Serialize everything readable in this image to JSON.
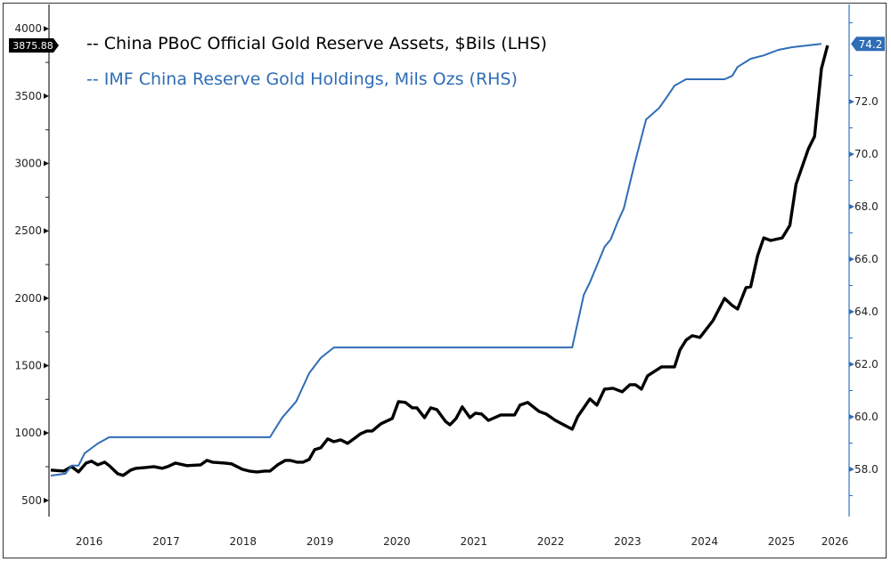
{
  "chart_data": {
    "type": "line",
    "title": "",
    "xlabel": "",
    "ylabel_left": "",
    "ylabel_right": "",
    "xlim": [
      2016.0,
      2026.38
    ],
    "ylim_left": [
      380,
      4180
    ],
    "ylim_right": [
      56.2,
      75.7
    ],
    "x_ticks": [
      "2016",
      "2017",
      "2018",
      "2019",
      "2020",
      "2021",
      "2022",
      "2023",
      "2024",
      "2025",
      "2026"
    ],
    "y_ticks_left": [
      500,
      1000,
      1500,
      2000,
      2500,
      3000,
      3500,
      4000
    ],
    "y_ticks_right": [
      "58.0",
      "60.0",
      "62.0",
      "64.0",
      "66.0",
      "68.0",
      "70.0",
      "72.0"
    ],
    "grid": false,
    "legend_placement": "top-left",
    "colors": {
      "left_series": "#000000",
      "right_series": "#2f6db5"
    },
    "series": [
      {
        "name": "-- China PBoC Official Gold Reserve Assets, $Bils (LHS)",
        "axis": "left",
        "last_value_label": "3875.88",
        "x": [
          2016.0,
          2016.17,
          2016.27,
          2016.36,
          2016.46,
          2016.53,
          2016.61,
          2016.7,
          2016.76,
          2016.87,
          2016.94,
          2017.04,
          2017.11,
          2017.23,
          2017.34,
          2017.45,
          2017.52,
          2017.62,
          2017.77,
          2017.95,
          2018.03,
          2018.1,
          2018.26,
          2018.35,
          2018.49,
          2018.58,
          2018.68,
          2018.78,
          2018.85,
          2018.95,
          2019.05,
          2019.11,
          2019.2,
          2019.28,
          2019.36,
          2019.43,
          2019.51,
          2019.6,
          2019.68,
          2019.77,
          2019.86,
          2019.94,
          2020.03,
          2020.11,
          2020.18,
          2020.29,
          2020.44,
          2020.52,
          2020.61,
          2020.7,
          2020.76,
          2020.86,
          2020.94,
          2021.02,
          2021.13,
          2021.19,
          2021.27,
          2021.35,
          2021.45,
          2021.52,
          2021.6,
          2021.69,
          2021.85,
          2022.03,
          2022.1,
          2022.2,
          2022.35,
          2022.44,
          2022.56,
          2022.78,
          2022.85,
          2023.01,
          2023.1,
          2023.2,
          2023.31,
          2023.43,
          2023.53,
          2023.6,
          2023.68,
          2023.76,
          2023.94,
          2024.11,
          2024.18,
          2024.26,
          2024.34,
          2024.44,
          2024.61,
          2024.76,
          2024.86,
          2024.93,
          2025.04,
          2025.1,
          2025.19,
          2025.27,
          2025.36,
          2025.51,
          2025.61,
          2025.69,
          2025.85,
          2025.93,
          2026.02,
          2026.1
        ],
        "values": [
          725,
          718,
          751,
          711,
          777,
          791,
          764,
          784,
          758,
          698,
          685,
          725,
          738,
          744,
          751,
          738,
          751,
          777,
          758,
          764,
          797,
          784,
          777,
          771,
          731,
          718,
          711,
          718,
          718,
          764,
          797,
          797,
          784,
          784,
          804,
          876,
          890,
          956,
          936,
          949,
          923,
          956,
          995,
          1015,
          1015,
          1068,
          1108,
          1233,
          1227,
          1187,
          1187,
          1114,
          1187,
          1174,
          1088,
          1061,
          1108,
          1194,
          1114,
          1147,
          1141,
          1094,
          1134,
          1134,
          1207,
          1227,
          1160,
          1141,
          1094,
          1028,
          1121,
          1253,
          1207,
          1326,
          1332,
          1306,
          1359,
          1359,
          1326,
          1425,
          1491,
          1491,
          1616,
          1689,
          1722,
          1709,
          1834,
          1999,
          1946,
          1920,
          2079,
          2085,
          2316,
          2448,
          2429,
          2448,
          2541,
          2845,
          3109,
          3201,
          3703,
          3875.88
        ]
      },
      {
        "name": "-- IMF China Reserve Gold Holdings, Mils Ozs  (RHS)",
        "axis": "right",
        "last_value_label": "74.2",
        "x": [
          2016.0,
          2016.19,
          2016.27,
          2016.36,
          2016.44,
          2016.61,
          2016.76,
          2018.85,
          2019.01,
          2019.19,
          2019.36,
          2019.51,
          2019.68,
          2022.78,
          2022.93,
          2023.01,
          2023.13,
          2023.2,
          2023.28,
          2023.37,
          2023.45,
          2023.59,
          2023.74,
          2023.91,
          2024.01,
          2024.11,
          2024.26,
          2024.76,
          2024.86,
          2024.93,
          2025.1,
          2025.27,
          2025.46,
          2025.63,
          2026.02
        ],
        "values": [
          57.76,
          57.83,
          58.14,
          58.14,
          58.61,
          58.98,
          59.22,
          59.22,
          59.97,
          60.58,
          61.66,
          62.24,
          62.64,
          62.64,
          64.64,
          65.12,
          65.97,
          66.47,
          66.75,
          67.42,
          67.93,
          69.63,
          71.32,
          71.76,
          72.17,
          72.61,
          72.85,
          72.85,
          72.98,
          73.32,
          73.63,
          73.76,
          73.97,
          74.07,
          74.2
        ]
      }
    ]
  }
}
